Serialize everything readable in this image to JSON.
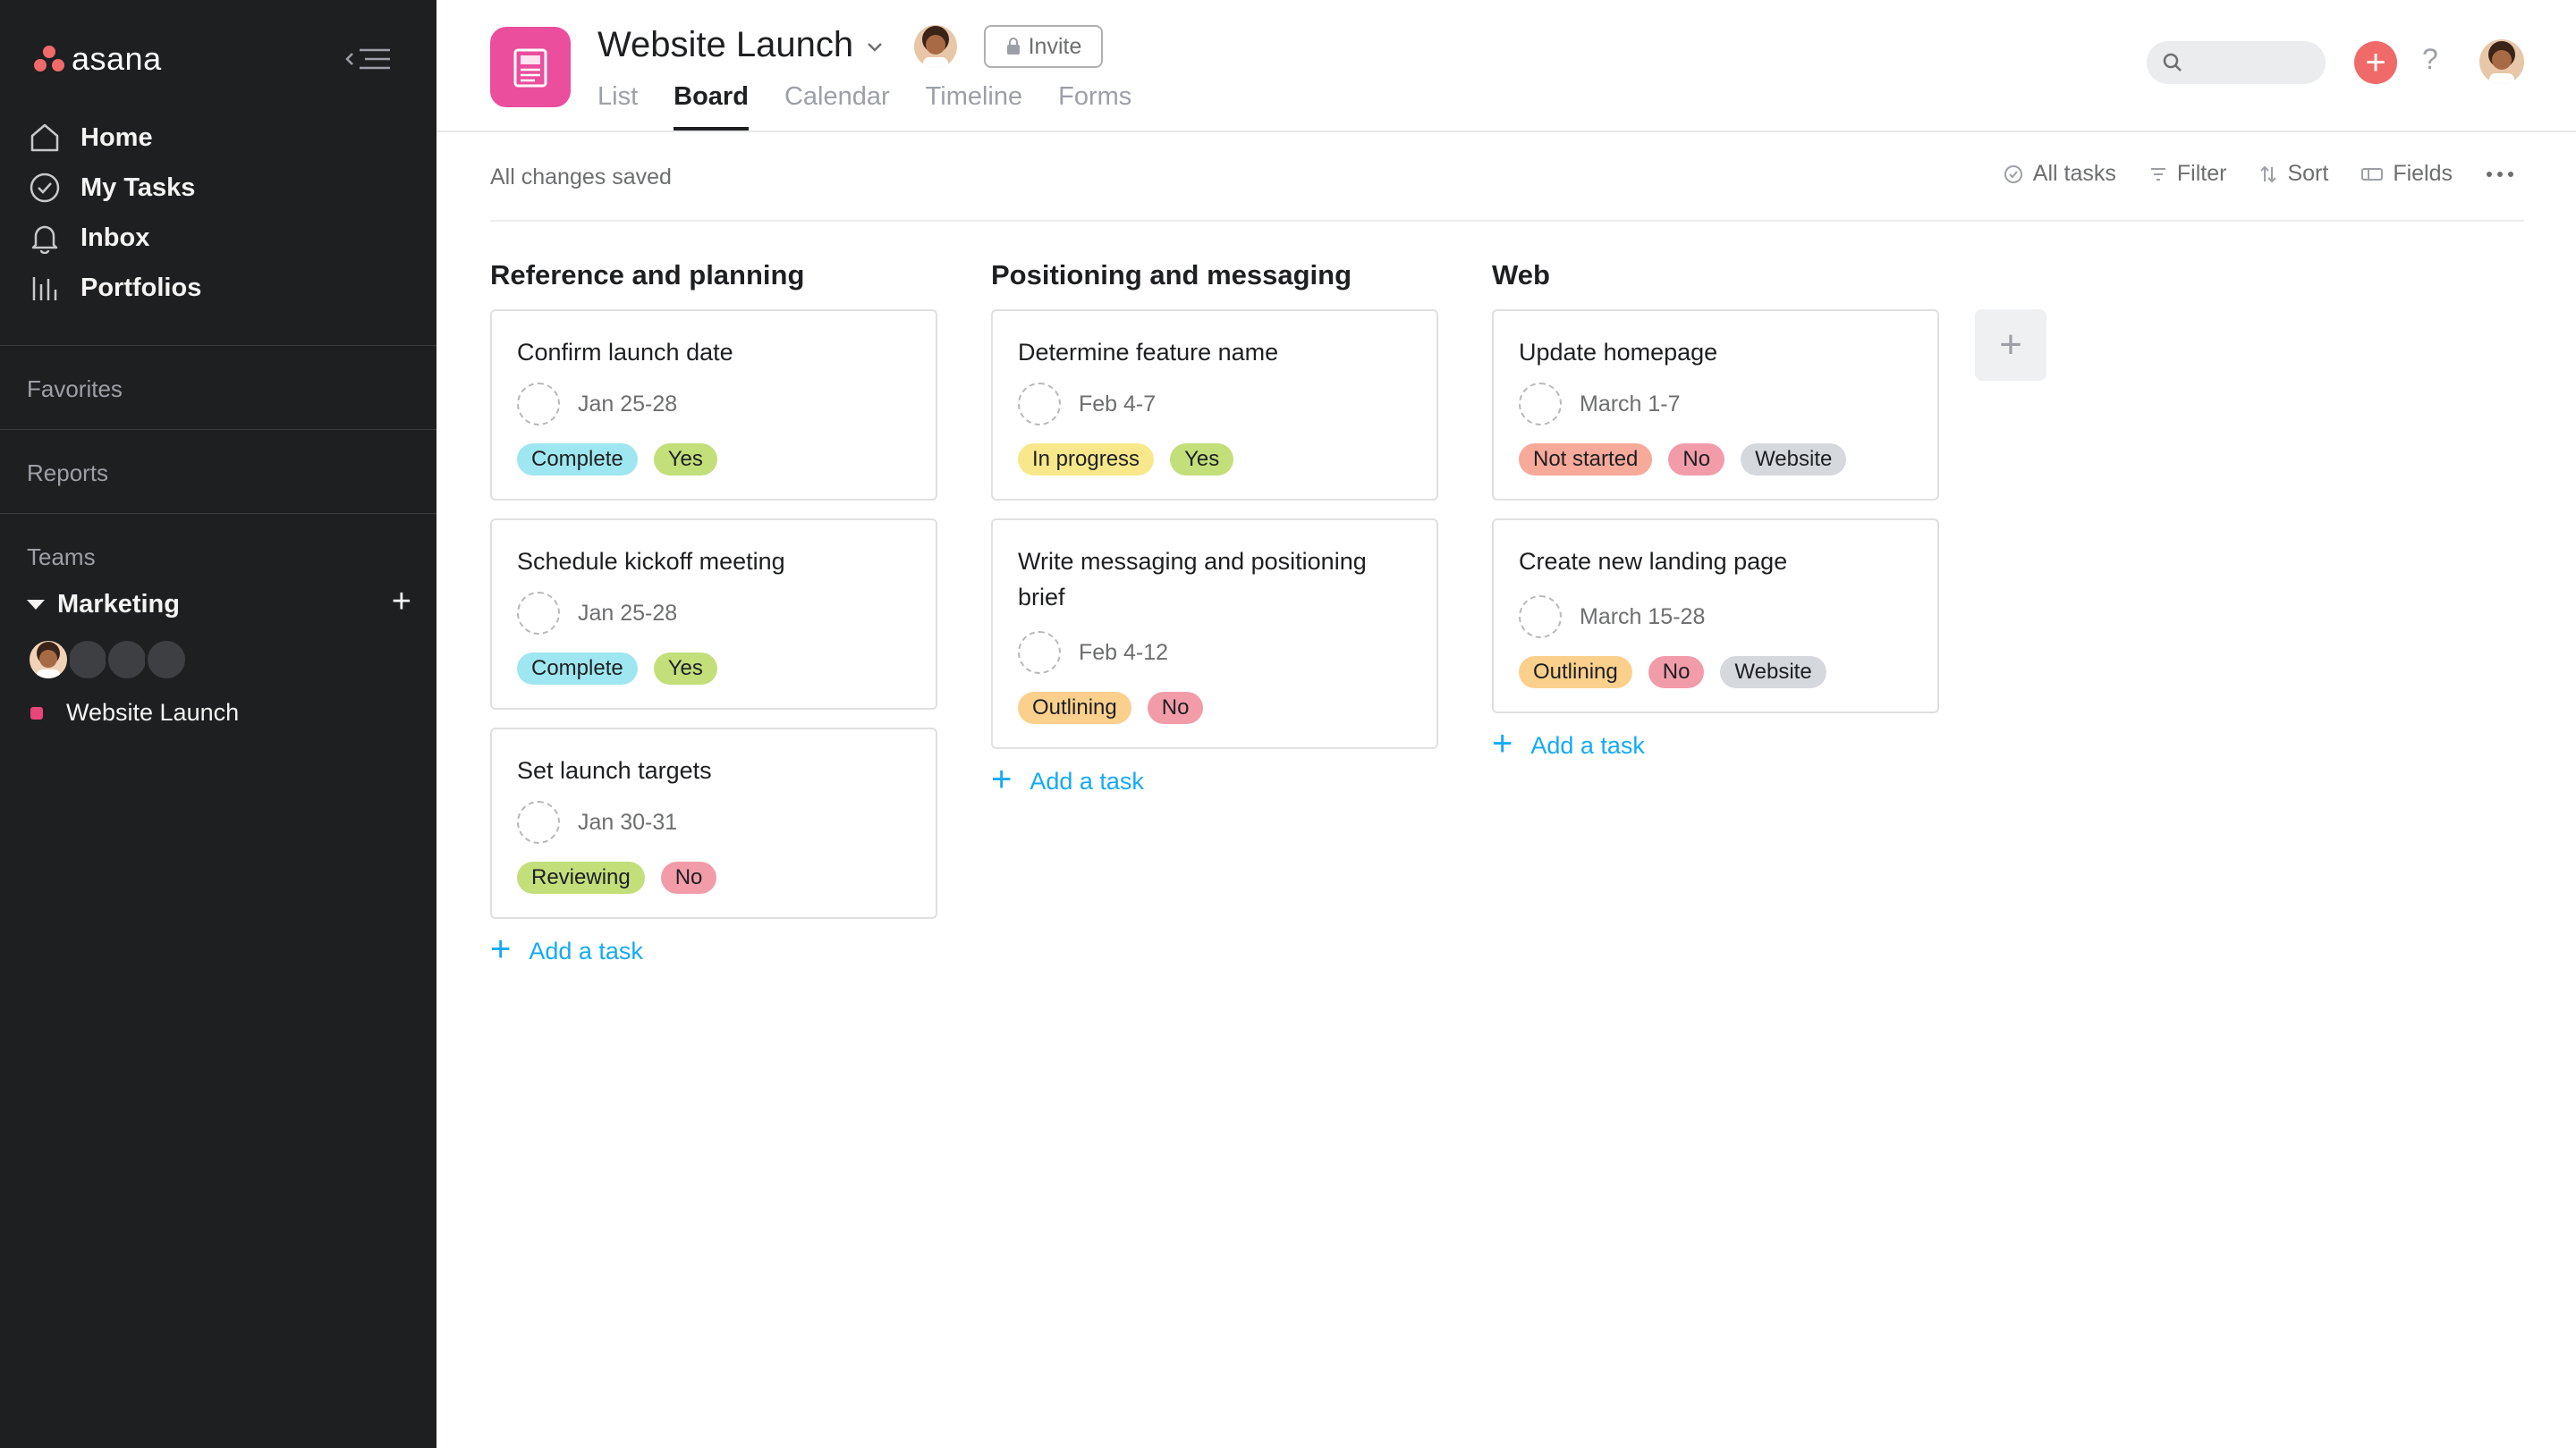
{
  "app": {
    "logo_text": "asana",
    "logo_color": "#f06a6a",
    "sidebar_bg": "#1e1f21"
  },
  "sidebar": {
    "nav": [
      {
        "label": "Home",
        "icon": "home-icon"
      },
      {
        "label": "My Tasks",
        "icon": "check-circle-icon"
      },
      {
        "label": "Inbox",
        "icon": "bell-icon"
      },
      {
        "label": "Portfolios",
        "icon": "bar-chart-icon"
      }
    ],
    "favorites_label": "Favorites",
    "reports_label": "Reports",
    "teams_label": "Teams",
    "team_name": "Marketing",
    "project_name": "Website Launch"
  },
  "header": {
    "project_title": "Website Launch",
    "invite_label": "Invite",
    "tabs": [
      "List",
      "Board",
      "Calendar",
      "Timeline",
      "Forms"
    ],
    "active_tab": "Board",
    "project_icon_color": "#ea4e9d"
  },
  "toolbar": {
    "status": "All changes saved",
    "all_tasks_label": "All tasks",
    "filter_label": "Filter",
    "sort_label": "Sort",
    "fields_label": "Fields"
  },
  "board": {
    "add_task_label": "Add a task",
    "columns": [
      {
        "title": "Reference and planning",
        "cards": [
          {
            "title": "Confirm launch date",
            "date": "Jan 25-28",
            "tags": [
              {
                "text": "Complete",
                "color": "#9ee7f0"
              },
              {
                "text": "Yes",
                "color": "#c2df7a"
              }
            ]
          },
          {
            "title": "Schedule kickoff meeting",
            "date": "Jan 25-28",
            "tags": [
              {
                "text": "Complete",
                "color": "#9ee7f0"
              },
              {
                "text": "Yes",
                "color": "#c2df7a"
              }
            ]
          },
          {
            "title": "Set launch targets",
            "date": "Jan 30-31",
            "tags": [
              {
                "text": "Reviewing",
                "color": "#c2df7a"
              },
              {
                "text": "No",
                "color": "#f29caa"
              }
            ]
          }
        ]
      },
      {
        "title": "Positioning and messaging",
        "cards": [
          {
            "title": "Determine feature name",
            "date": "Feb 4-7",
            "tags": [
              {
                "text": "In progress",
                "color": "#f8e88b"
              },
              {
                "text": "Yes",
                "color": "#c2df7a"
              }
            ]
          },
          {
            "title": "Write messaging and positioning brief",
            "date": "Feb 4-12",
            "tags": [
              {
                "text": "Outlining",
                "color": "#fbd08c"
              },
              {
                "text": "No",
                "color": "#f29caa"
              }
            ]
          }
        ]
      },
      {
        "title": "Web",
        "cards": [
          {
            "title": "Update homepage",
            "date": "March 1-7",
            "tags": [
              {
                "text": "Not started",
                "color": "#f7a99a"
              },
              {
                "text": "No",
                "color": "#f29caa"
              },
              {
                "text": "Website",
                "color": "#d5d8dc"
              }
            ]
          },
          {
            "title": "Create new landing page",
            "date": "March 15-28",
            "tags": [
              {
                "text": "Outlining",
                "color": "#fbd08c"
              },
              {
                "text": "No",
                "color": "#f29caa"
              },
              {
                "text": "Website",
                "color": "#d5d8dc"
              }
            ]
          }
        ]
      }
    ]
  }
}
